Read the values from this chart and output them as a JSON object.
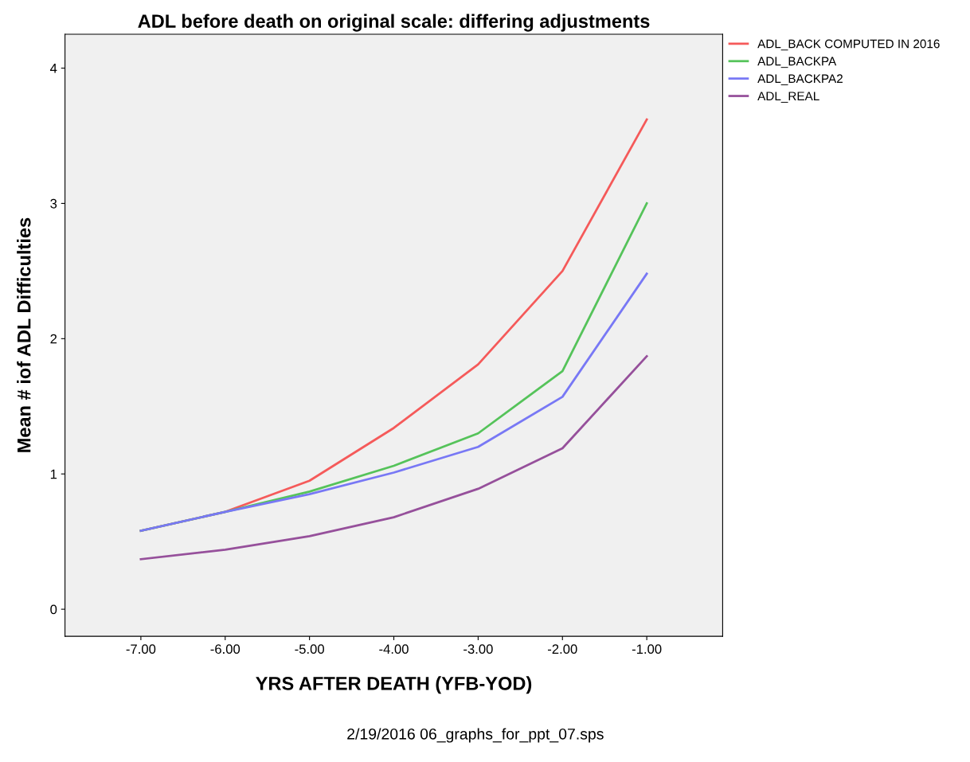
{
  "chart_data": {
    "type": "line",
    "title": "ADL before death on original scale: differing adjustments",
    "xlabel": "YRS AFTER DEATH (YFB-YOD)",
    "ylabel": "Mean # iof ADL Difficulties",
    "x": [
      -7,
      -6,
      -5,
      -4,
      -3,
      -2,
      -1
    ],
    "series": [
      {
        "name": "ADL_BACK COMPUTED IN 2016",
        "color": "#f55a5a",
        "values": [
          0.58,
          0.72,
          0.95,
          1.34,
          1.81,
          2.5,
          3.62
        ]
      },
      {
        "name": "ADL_BACKPA",
        "color": "#55c35a",
        "values": [
          0.58,
          0.72,
          0.87,
          1.06,
          1.3,
          1.76,
          3.0
        ]
      },
      {
        "name": "ADL_BACKPA2",
        "color": "#7878f5",
        "values": [
          0.58,
          0.72,
          0.85,
          1.01,
          1.2,
          1.57,
          2.48
        ]
      },
      {
        "name": "ADL_REAL",
        "color": "#96509b",
        "values": [
          0.37,
          0.44,
          0.54,
          0.68,
          0.89,
          1.19,
          1.87
        ]
      }
    ],
    "xlim": [
      -7.9,
      -0.1
    ],
    "ylim": [
      -0.2,
      4.25
    ],
    "xticks": [
      {
        "value": -7,
        "label": "-7.00"
      },
      {
        "value": -6,
        "label": "-6.00"
      },
      {
        "value": -5,
        "label": "-5.00"
      },
      {
        "value": -4,
        "label": "-4.00"
      },
      {
        "value": -3,
        "label": "-3.00"
      },
      {
        "value": -2,
        "label": "-2.00"
      },
      {
        "value": -1,
        "label": "-1.00"
      }
    ],
    "yticks": [
      0,
      1,
      2,
      3,
      4
    ],
    "legend": "top right",
    "grid": false,
    "marker": "none",
    "line_style": "solid",
    "annotations": [
      "2/19/2016 06_graphs_for_ppt_07.sps"
    ]
  }
}
